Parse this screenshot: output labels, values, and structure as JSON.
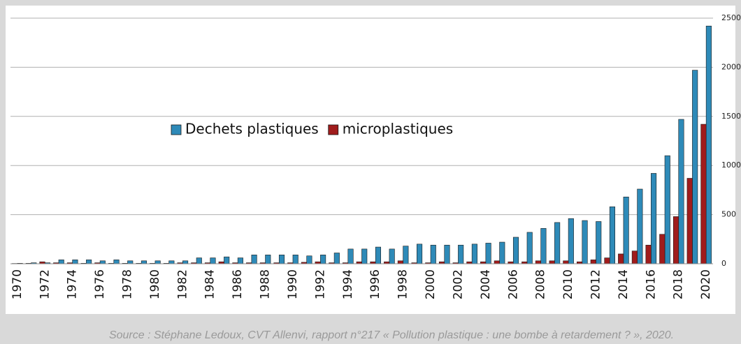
{
  "chart_data": {
    "type": "bar",
    "caption": "Source : Stéphane Ledoux, CVT Allenvi, rapport n°217 « Pollution plastique : une bombe à retardement ? », 2020.",
    "categories": [
      "1970",
      null,
      "1972",
      null,
      "1974",
      null,
      "1976",
      null,
      "1978",
      null,
      "1980",
      null,
      "1982",
      null,
      "1984",
      null,
      "1986",
      null,
      "1988",
      null,
      "1990",
      null,
      "1992",
      null,
      "1994",
      null,
      "1996",
      null,
      "1998",
      null,
      "2000",
      null,
      "2002",
      null,
      "2004",
      null,
      "2006",
      null,
      "2008",
      null,
      "2010",
      null,
      "2012",
      null,
      "2014",
      null,
      "2016",
      null,
      "2018",
      null,
      "2020"
    ],
    "series": [
      {
        "name": "Dechets plastiques",
        "color": "#2e8ab8",
        "values": [
          5,
          10,
          10,
          40,
          40,
          40,
          30,
          40,
          30,
          30,
          30,
          30,
          30,
          60,
          60,
          70,
          60,
          90,
          90,
          90,
          90,
          80,
          90,
          110,
          150,
          150,
          170,
          150,
          180,
          200,
          190,
          190,
          190,
          200,
          210,
          220,
          270,
          320,
          360,
          420,
          460,
          440,
          430,
          580,
          680,
          760,
          920,
          1100,
          1470,
          1970,
          2420
        ]
      },
      {
        "name": "microplastiques",
        "color": "#a01c1c",
        "values": [
          3,
          5,
          20,
          10,
          10,
          5,
          10,
          5,
          5,
          5,
          5,
          5,
          10,
          10,
          10,
          20,
          10,
          10,
          10,
          10,
          10,
          15,
          20,
          10,
          10,
          20,
          20,
          20,
          30,
          10,
          10,
          20,
          10,
          20,
          20,
          30,
          20,
          20,
          30,
          30,
          30,
          20,
          40,
          60,
          100,
          130,
          190,
          300,
          480,
          870,
          1420
        ]
      }
    ],
    "ylim": [
      0,
      2500
    ],
    "yticks": [
      0,
      500,
      1000,
      1500,
      2000,
      2500
    ],
    "grid": true,
    "legend": "center"
  }
}
